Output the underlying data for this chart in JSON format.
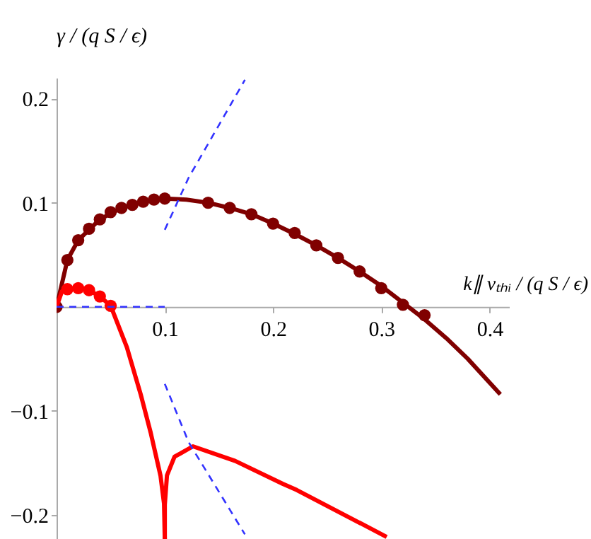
{
  "chart_data": {
    "type": "line",
    "ylabel": "γ / (q S / ϵ)",
    "xlabel": "k∥ vₜₕᵢ / (q S / ϵ)",
    "xlim": [
      0,
      0.418
    ],
    "ylim": [
      -0.223,
      0.22
    ],
    "xticks": [
      0.1,
      0.2,
      0.3,
      0.4
    ],
    "yticks": [
      -0.2,
      -0.1,
      0.1,
      0.2
    ],
    "grid": false,
    "series": [
      {
        "color": "#800000",
        "marker": "none",
        "x": [
          0,
          0.01,
          0.02,
          0.04,
          0.06,
          0.08,
          0.1,
          0.12,
          0.14,
          0.16,
          0.18,
          0.2,
          0.22,
          0.24,
          0.26,
          0.28,
          0.3,
          0.32,
          0.34,
          0.36,
          0.38,
          0.41
        ],
        "values": [
          0,
          0.045,
          0.064,
          0.084,
          0.095,
          0.101,
          0.104,
          0.103,
          0.1,
          0.095,
          0.089,
          0.08,
          0.07,
          0.059,
          0.047,
          0.034,
          0.02,
          0.004,
          -0.012,
          -0.03,
          -0.05,
          -0.084
        ]
      },
      {
        "type": "scatter",
        "color": "#800000",
        "marker": "circle",
        "x": [
          0,
          0.01,
          0.02,
          0.03,
          0.04,
          0.05,
          0.06,
          0.07,
          0.08,
          0.09,
          0.1,
          0.14,
          0.16,
          0.18,
          0.2,
          0.22,
          0.24,
          0.26,
          0.28,
          0.3,
          0.32,
          0.34
        ],
        "values": [
          0,
          0.045,
          0.064,
          0.075,
          0.084,
          0.091,
          0.095,
          0.098,
          0.101,
          0.103,
          0.104,
          0.1,
          0.095,
          0.089,
          0.08,
          0.071,
          0.059,
          0.047,
          0.034,
          0.018,
          0.002,
          -0.008
        ]
      },
      {
        "color": "#ff0000",
        "marker": "none",
        "x": [
          0,
          0.005,
          0.01,
          0.02,
          0.03,
          0.04,
          0.05,
          0.065,
          0.078,
          0.087,
          0.096,
          0.0993,
          0.1
        ],
        "values": [
          0,
          0.015,
          0.017,
          0.018,
          0.016,
          0.01,
          0.001,
          -0.039,
          -0.085,
          -0.121,
          -0.162,
          -0.189,
          -0.223
        ]
      },
      {
        "type": "scatter",
        "color": "#ff0000",
        "marker": "circle",
        "x": [
          0.01,
          0.02,
          0.03,
          0.04,
          0.05
        ],
        "values": [
          0.017,
          0.018,
          0.016,
          0.01,
          0.001
        ]
      },
      {
        "color": "#ff0000",
        "marker": "none",
        "x": [
          0.1,
          0.1,
          0.102,
          0.109,
          0.126,
          0.165,
          0.209,
          0.222,
          0.305
        ],
        "values": [
          -0.223,
          -0.19,
          -0.162,
          -0.144,
          -0.134,
          -0.148,
          -0.17,
          -0.176,
          -0.221
        ]
      },
      {
        "color": "#3333ff",
        "marker": "none",
        "line_style": "dashed",
        "x": [
          0.1,
          0.122,
          0.174
        ],
        "values": [
          0.074,
          0.124,
          0.218
        ]
      },
      {
        "color": "#3333ff",
        "marker": "none",
        "line_style": "dashed",
        "x": [
          0,
          0.1
        ],
        "values": [
          0,
          0
        ]
      },
      {
        "color": "#3333ff",
        "marker": "none",
        "line_style": "dashed",
        "x": [
          0.1,
          0.122,
          0.174
        ],
        "values": [
          -0.074,
          -0.13,
          -0.2185
        ]
      }
    ]
  }
}
